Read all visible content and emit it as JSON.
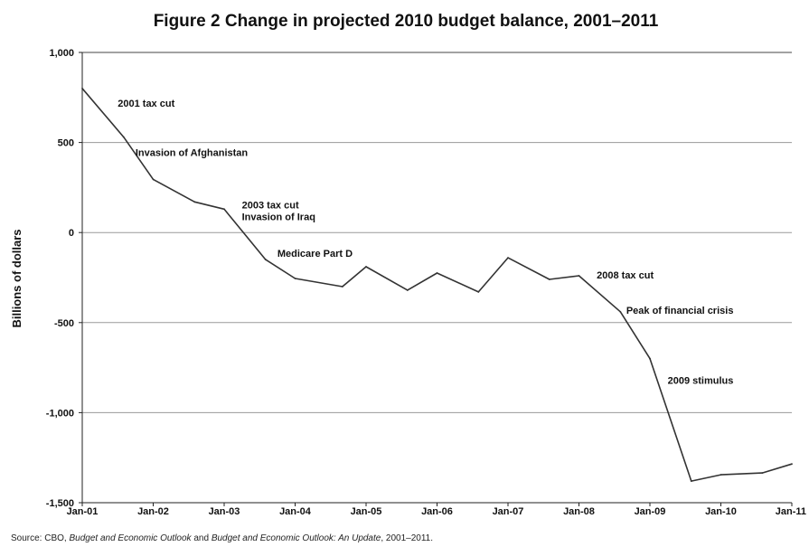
{
  "chart_data": {
    "type": "line",
    "title": "Figure 2 Change in projected 2010 budget balance, 2001–2011",
    "ylabel": "Billions of dollars",
    "xlabel": "",
    "ylim": [
      -1500,
      1000
    ],
    "yticks": [
      1000,
      500,
      0,
      -500,
      -1000,
      -1500
    ],
    "ytick_labels": [
      "1,000",
      "500",
      "0",
      "-500",
      "-1,000",
      "-1,500"
    ],
    "xticks": [
      "Jan-01",
      "Jan-02",
      "Jan-03",
      "Jan-04",
      "Jan-05",
      "Jan-06",
      "Jan-07",
      "Jan-08",
      "Jan-09",
      "Jan-10",
      "Jan-11"
    ],
    "grid": "horizontal",
    "legend": "none",
    "series": [
      {
        "x": [
          "2001-01",
          "2001-08",
          "2002-01",
          "2002-08",
          "2003-01",
          "2003-08",
          "2004-01",
          "2004-09",
          "2005-01",
          "2005-08",
          "2006-01",
          "2006-08",
          "2007-01",
          "2007-08",
          "2008-01",
          "2008-08",
          "2009-01",
          "2009-08",
          "2010-01",
          "2010-08",
          "2011-01"
        ],
        "values": [
          800,
          530,
          295,
          170,
          130,
          -150,
          -255,
          -300,
          -190,
          -320,
          -225,
          -330,
          -140,
          -260,
          -240,
          -440,
          -700,
          -1380,
          -1345,
          -1335,
          -1285
        ],
        "color": "#333333"
      }
    ],
    "annotations": [
      {
        "text": "2001 tax cut",
        "x": "2001-07",
        "y": 700
      },
      {
        "text": "Invasion of Afghanistan",
        "x": "2001-10",
        "y": 425
      },
      {
        "text": "2003 tax cut",
        "x": "2003-04",
        "y": 135
      },
      {
        "text": "Invasion of Iraq",
        "x": "2003-04",
        "y": 70
      },
      {
        "text": "Medicare Part D",
        "x": "2003-10",
        "y": -135
      },
      {
        "text": "2008 tax cut",
        "x": "2008-04",
        "y": -255
      },
      {
        "text": "Peak of financial crisis",
        "x": "2008-09",
        "y": -450
      },
      {
        "text": "2009 stimulus",
        "x": "2009-04",
        "y": -840
      }
    ]
  },
  "source": {
    "prefix": "Source: CBO, ",
    "italic1": "Budget and Economic Outlook",
    "mid": " and ",
    "italic2": "Budget and Economic Outlook: An Update",
    "suffix": ", 2001–2011."
  }
}
